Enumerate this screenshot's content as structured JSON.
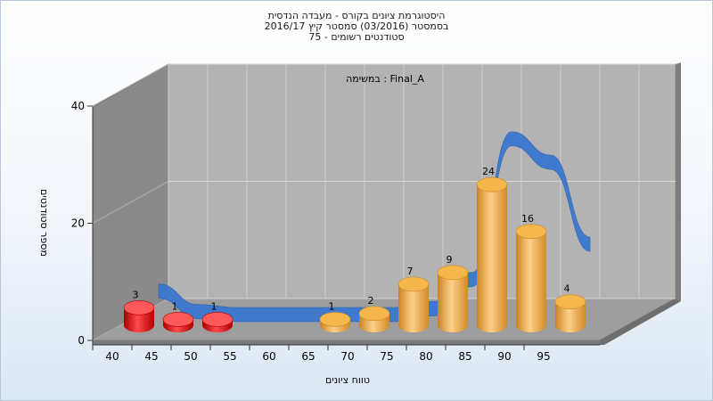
{
  "title_lines": [
    "היסטוגרמת ציונים בקורס - מעבדה הנדסית",
    "בסמסטר  (03/2016)  סמסטר קיץ 2016/17",
    "סטודנטים רשומים - 75"
  ],
  "chart_data": {
    "type": "bar",
    "annotation": "במשימה : Final_A",
    "xlabel": "טווח ציונים",
    "ylabel": "מספר סטודנטים",
    "categories": [
      "40",
      "45",
      "50",
      "55",
      "60",
      "65",
      "70",
      "75",
      "80",
      "85",
      "90",
      "95"
    ],
    "values": [
      3,
      1,
      1,
      0,
      0,
      1,
      2,
      7,
      9,
      24,
      16,
      4
    ],
    "bar_colors": [
      "#e11a1a",
      "#e11a1a",
      "#e11a1a",
      "#e11a1a",
      "#e11a1a",
      "#e8a33a",
      "#e8a33a",
      "#e8a33a",
      "#e8a33a",
      "#e8a33a",
      "#e8a33a",
      "#e8a33a"
    ],
    "ylim": [
      0,
      40
    ],
    "yticks": [
      0,
      20,
      40
    ],
    "grid": true,
    "curve": {
      "color": "#3a78d0",
      "values": [
        4,
        0.5,
        0,
        0,
        0,
        0,
        0,
        1,
        6,
        30,
        26,
        12
      ]
    }
  }
}
